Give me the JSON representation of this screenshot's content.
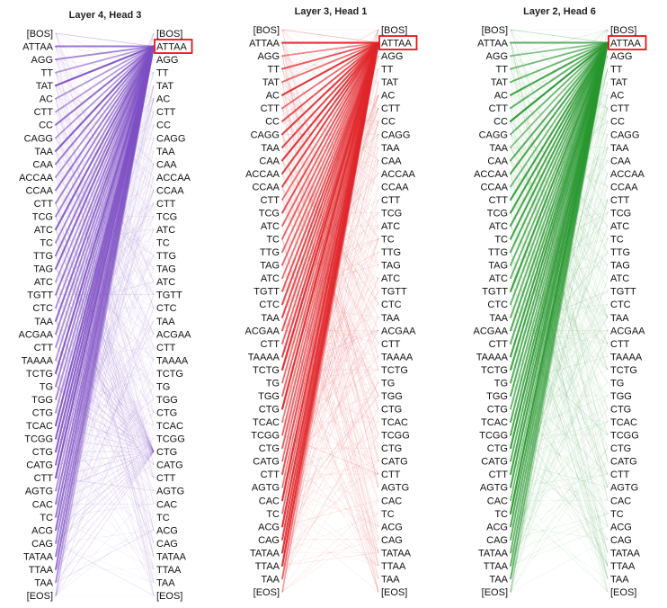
{
  "tokens": [
    "[BOS]",
    "ATTAA",
    "AGG",
    "TT",
    "TAT",
    "AC",
    "CTT",
    "CC",
    "CAGG",
    "TAA",
    "CAA",
    "ACCAA",
    "CCAA",
    "CTT",
    "TCG",
    "ATC",
    "TC",
    "TTG",
    "TAG",
    "ATC",
    "TGTT",
    "CTC",
    "TAA",
    "ACGAA",
    "CTT",
    "TAAAA",
    "TCTG",
    "TG",
    "TGG",
    "CTG",
    "TCAC",
    "TCGG",
    "CTG",
    "CATG",
    "CTT",
    "AGTG",
    "CAC",
    "TC",
    "ACG",
    "CAG",
    "TATAA",
    "TTAA",
    "TAA",
    "[EOS]"
  ],
  "highlight_index": 1,
  "panels": [
    {
      "title": "Layer 4, Head 3",
      "color": "#7e4fc4",
      "secondary_target": 32
    },
    {
      "title": "Layer 3, Head 1",
      "color": "#e0262a",
      "secondary_target": -1
    },
    {
      "title": "Layer 2, Head 6",
      "color": "#27962e",
      "secondary_target": -1
    }
  ]
}
